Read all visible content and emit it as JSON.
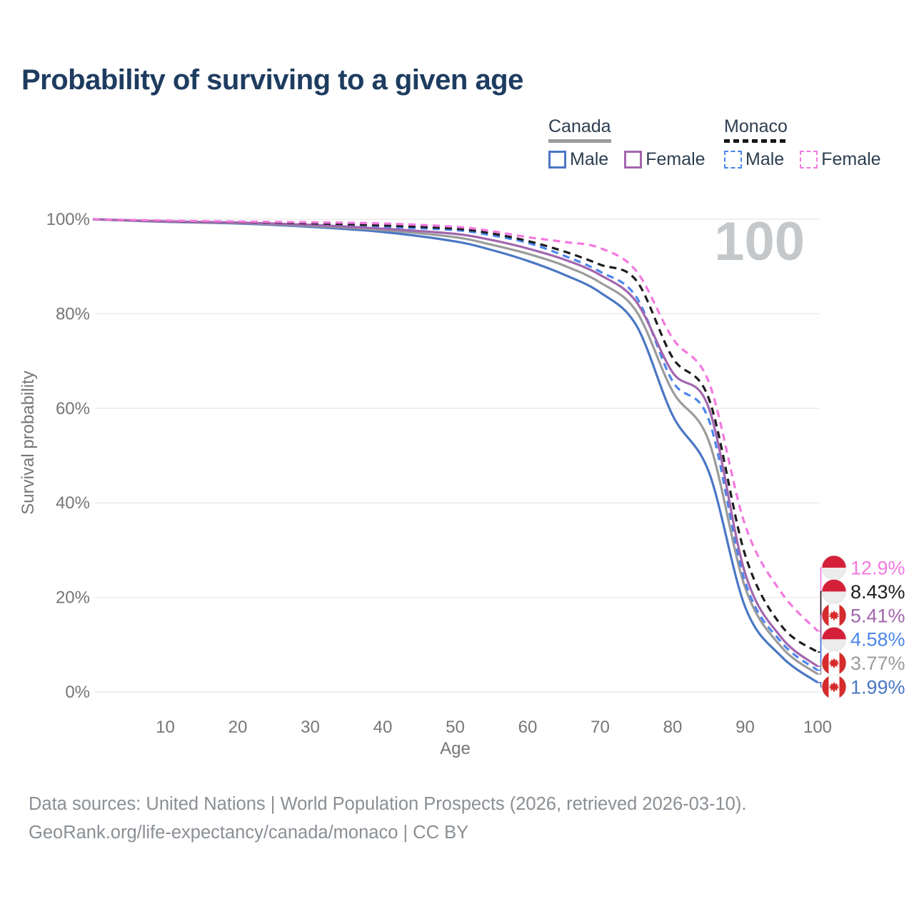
{
  "title": "Probability of surviving to a given age",
  "watermark_age": "100",
  "legend": {
    "groups": [
      {
        "name": "Canada",
        "underline_style": "solid",
        "underline_color": "#9b9b9b",
        "items": [
          {
            "label": "Male",
            "color": "#4a77c4",
            "dashed": false
          },
          {
            "label": "Female",
            "color": "#a266ae",
            "dashed": false
          }
        ]
      },
      {
        "name": "Monaco",
        "underline_style": "dashed",
        "underline_color": "#161616",
        "items": [
          {
            "label": "Male",
            "color": "#4c86ec",
            "dashed": true
          },
          {
            "label": "Female",
            "color": "#f279df",
            "dashed": true
          }
        ]
      }
    ]
  },
  "chart_data": {
    "type": "line",
    "title": "Probability of surviving to a given age",
    "xlabel": "Age",
    "ylabel": "Survival probability",
    "xlim": [
      0,
      100
    ],
    "ylim": [
      0,
      100
    ],
    "grid": true,
    "legend_position": "top-right",
    "x_ticks": [
      10,
      20,
      30,
      40,
      50,
      60,
      70,
      80,
      90,
      100
    ],
    "y_ticks": [
      0,
      20,
      40,
      60,
      80,
      100
    ],
    "y_tick_labels": [
      "0%",
      "20%",
      "40%",
      "60%",
      "80%",
      "100%"
    ],
    "x": [
      0,
      10,
      20,
      30,
      40,
      50,
      55,
      60,
      65,
      70,
      75,
      80,
      85,
      90,
      95,
      100
    ],
    "series": [
      {
        "id": "monaco-female",
        "name": "Monaco Female",
        "country": "Monaco",
        "sex": "Female",
        "flag": "monaco",
        "color": "#f279df",
        "dashed": true,
        "end_label": "12.9%",
        "values": [
          100,
          99.7,
          99.5,
          99.35,
          99.1,
          98.4,
          97.5,
          96.2,
          95.2,
          93.9,
          89.0,
          74.8,
          65.5,
          35.3,
          21.0,
          12.9
        ]
      },
      {
        "id": "monaco-overall",
        "name": "Monaco",
        "country": "Monaco",
        "sex": "Both",
        "flag": "monaco",
        "color": "#1d1d1f",
        "dashed": true,
        "end_label": "8.43%",
        "values": [
          100,
          99.65,
          99.45,
          99.15,
          98.7,
          98.0,
          97.0,
          95.4,
          93.2,
          90.4,
          87.0,
          70.7,
          62.0,
          29.0,
          14.0,
          8.43
        ]
      },
      {
        "id": "canada-female",
        "name": "Canada Female",
        "country": "Canada",
        "sex": "Female",
        "flag": "canada",
        "color": "#a266ae",
        "dashed": false,
        "end_label": "5.41%",
        "values": [
          100,
          99.55,
          99.3,
          98.8,
          98.0,
          96.9,
          95.6,
          93.8,
          91.5,
          88.2,
          82.5,
          67.6,
          60.0,
          25.1,
          11.5,
          5.41
        ]
      },
      {
        "id": "monaco-male",
        "name": "Monaco Male",
        "country": "Monaco",
        "sex": "Male",
        "flag": "monaco",
        "color": "#4c86ec",
        "dashed": true,
        "end_label": "4.58%",
        "values": [
          100,
          99.6,
          99.4,
          99.0,
          98.4,
          97.7,
          96.6,
          95.0,
          92.3,
          88.9,
          83.5,
          65.7,
          57.5,
          23.3,
          10.5,
          4.58
        ]
      },
      {
        "id": "canada-overall",
        "name": "Canada",
        "country": "Canada",
        "sex": "Both",
        "flag": "canada",
        "color": "#9b9b9b",
        "dashed": false,
        "end_label": "3.77%",
        "values": [
          100,
          99.5,
          99.2,
          98.6,
          97.7,
          96.2,
          94.6,
          92.7,
          90.2,
          86.6,
          80.5,
          63.6,
          53.0,
          22.1,
          9.5,
          3.77
        ]
      },
      {
        "id": "canada-male",
        "name": "Canada Male",
        "country": "Canada",
        "sex": "Male",
        "flag": "canada",
        "color": "#4a77c4",
        "dashed": false,
        "end_label": "1.99%",
        "values": [
          100,
          99.45,
          99.1,
          98.4,
          97.3,
          95.3,
          93.5,
          91.2,
          88.3,
          84.5,
          77.5,
          58.5,
          46.5,
          18.0,
          7.5,
          1.99
        ]
      }
    ]
  },
  "footer": {
    "line1": "Data sources: United Nations | World Population Prospects (2026, retrieved 2026-03-10).",
    "line2": "GeoRank.org/life-expectancy/canada/monaco | CC BY"
  }
}
